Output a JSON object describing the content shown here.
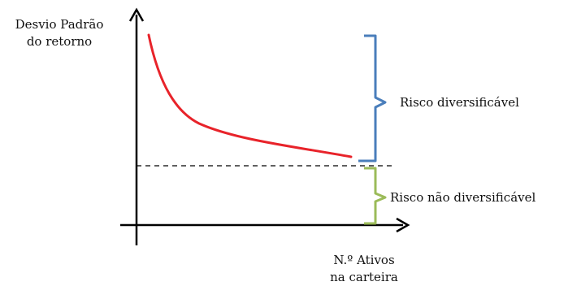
{
  "diagram": {
    "y_axis_label_line1": "Desvio Padrão",
    "y_axis_label_line2": "do retorno",
    "x_axis_label_line1": "N.º Ativos",
    "x_axis_label_line2": "na carteira",
    "brace_upper_label": "Risco diversificável",
    "brace_lower_label": "Risco não diversificável"
  },
  "colors": {
    "axes": "#000000",
    "curve": "#e8232a",
    "upper_brace": "#4a7ebb",
    "lower_brace": "#9bbb59",
    "dashed_line": "#000000"
  }
}
